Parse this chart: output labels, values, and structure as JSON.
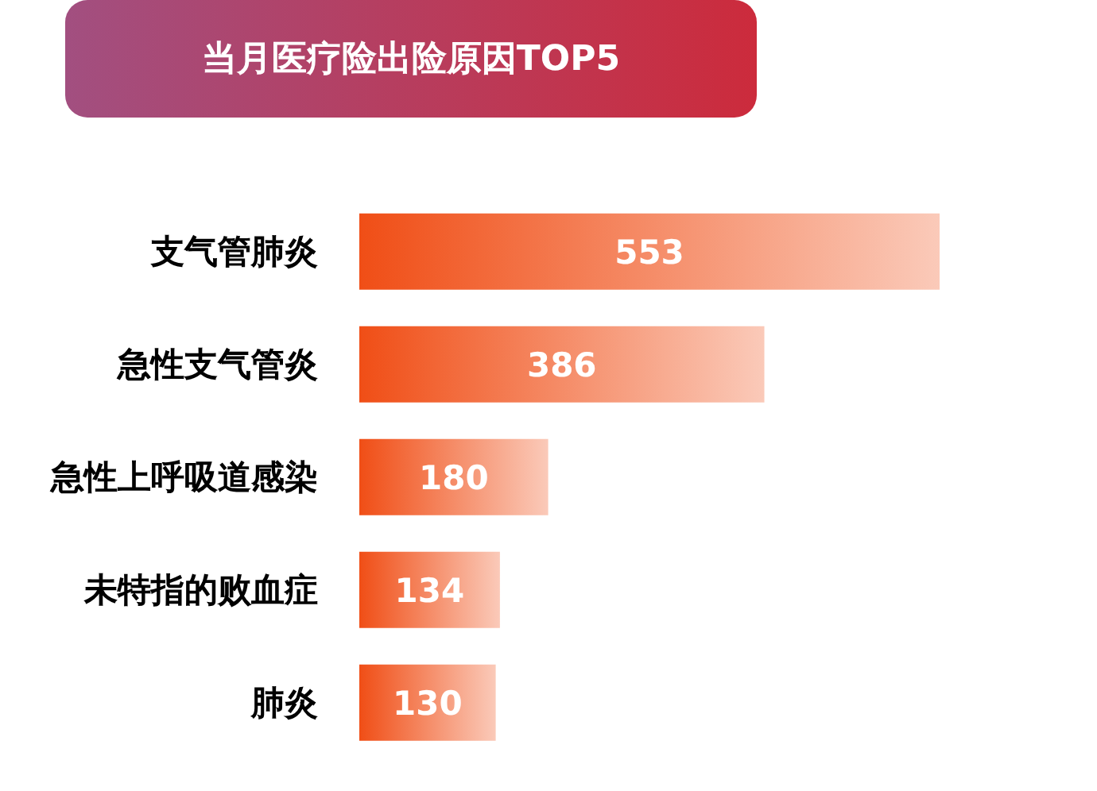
{
  "chart_data": {
    "type": "bar",
    "orientation": "horizontal",
    "title": "当月医疗险出险原因TOP5",
    "categories": [
      "支气管肺炎",
      "急性支气管炎",
      "急性上呼吸道感染",
      "未特指的败血症",
      "肺炎"
    ],
    "series": [
      {
        "color": "#f04e16",
        "values": [
          553,
          386,
          180,
          134,
          130
        ]
      }
    ],
    "data_labels": true,
    "grid": false,
    "legend": false
  }
}
